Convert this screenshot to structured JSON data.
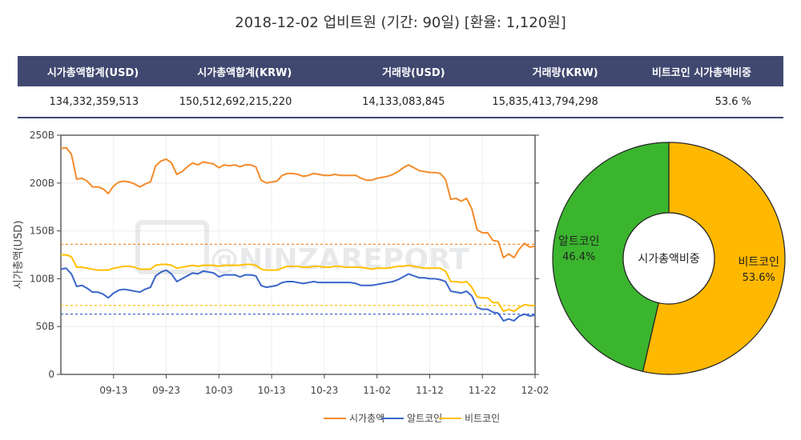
{
  "title": "2018-12-02 업비트원 (기간: 90일)   [환율: 1,120원]",
  "stats": {
    "headers": [
      "시가총액합계(USD)",
      "시가총액합계(KRW)",
      "거래량(USD)",
      "거래량(KRW)",
      "비트코인 시가총액비중"
    ],
    "values": [
      "134,332,359,513",
      "150,512,692,215,220",
      "14,133,083,845",
      "15,835,413,794,298",
      "53.6 %"
    ]
  },
  "watermark": "@NINZAREPORT",
  "colors": {
    "total": "#f48b2c",
    "alt": "#3a66c8",
    "btc": "#ffbf00",
    "pie_btc": "#ffb800",
    "pie_alt": "#3bb52e",
    "header_bg": "#414870"
  },
  "chart_data": [
    {
      "type": "line",
      "ylabel": "시가총액(USD)",
      "ylim": [
        0,
        250
      ],
      "yticks": [
        "0",
        "50B",
        "100B",
        "150B",
        "200B",
        "250B"
      ],
      "xticks": [
        "09-13",
        "09-23",
        "10-03",
        "10-13",
        "10-23",
        "11-02",
        "11-12",
        "11-22",
        "12-02"
      ],
      "x_start_day": 0,
      "x_end_day": 90,
      "xtick_days": [
        10,
        20,
        30,
        40,
        50,
        60,
        70,
        80,
        90
      ],
      "series": [
        {
          "name": "시가총액",
          "color": "#f48b2c",
          "values": [
            236,
            237,
            230,
            204,
            205,
            202,
            196,
            196,
            194,
            189,
            197,
            201,
            202,
            201,
            199,
            196,
            199,
            201,
            218,
            223,
            225,
            221,
            209,
            212,
            217,
            221,
            219,
            222,
            221,
            220,
            216,
            219,
            218,
            219,
            217,
            219,
            219,
            217,
            203,
            200,
            201,
            202,
            208,
            210,
            210,
            209,
            207,
            208,
            210,
            209,
            208,
            208,
            209,
            208,
            208,
            208,
            208,
            205,
            203,
            203,
            205,
            206,
            207,
            209,
            212,
            216,
            219,
            216,
            213,
            212,
            211,
            211,
            210,
            204,
            183,
            184,
            181,
            184,
            173,
            151,
            148,
            148,
            140,
            139,
            122,
            126,
            122,
            131,
            137,
            133,
            134
          ],
          "mean": 136
        },
        {
          "name": "알트코인",
          "color": "#3a66c8",
          "values": [
            110,
            111,
            105,
            92,
            93,
            90,
            86,
            86,
            84,
            80,
            85,
            88,
            89,
            88,
            87,
            86,
            89,
            91,
            103,
            107,
            109,
            105,
            97,
            100,
            103,
            106,
            105,
            108,
            107,
            106,
            102,
            104,
            104,
            104,
            102,
            104,
            104,
            103,
            93,
            91,
            92,
            93,
            96,
            97,
            97,
            96,
            95,
            96,
            97,
            96,
            96,
            96,
            96,
            96,
            96,
            96,
            95,
            93,
            93,
            93,
            94,
            95,
            96,
            97,
            99,
            102,
            105,
            103,
            101,
            101,
            100,
            100,
            99,
            97,
            87,
            86,
            85,
            87,
            82,
            70,
            68,
            68,
            65,
            64,
            56,
            58,
            56,
            61,
            63,
            61,
            62
          ],
          "mean": 63
        },
        {
          "name": "비트코인",
          "color": "#ffbf00",
          "values": [
            125,
            125,
            123,
            112,
            112,
            111,
            110,
            109,
            109,
            109,
            111,
            112,
            113,
            113,
            112,
            110,
            110,
            110,
            114,
            115,
            115,
            114,
            111,
            112,
            113,
            114,
            113,
            114,
            114,
            114,
            113,
            114,
            114,
            114,
            114,
            115,
            115,
            114,
            110,
            109,
            109,
            109,
            111,
            113,
            113,
            113,
            112,
            112,
            113,
            113,
            112,
            112,
            113,
            113,
            112,
            112,
            112,
            112,
            111,
            110,
            111,
            111,
            111,
            112,
            113,
            113,
            114,
            113,
            112,
            111,
            111,
            111,
            111,
            108,
            97,
            97,
            96,
            97,
            91,
            81,
            80,
            80,
            75,
            75,
            66,
            68,
            66,
            70,
            73,
            72,
            72
          ],
          "mean": 72
        }
      ]
    },
    {
      "type": "pie",
      "center_label": "시가총액비중",
      "slices": [
        {
          "label": "비트코인",
          "value": 53.6,
          "pct": "53.6%",
          "color": "#ffb800"
        },
        {
          "label": "알트코인",
          "value": 46.4,
          "pct": "46.4%",
          "color": "#3bb52e"
        }
      ]
    }
  ]
}
